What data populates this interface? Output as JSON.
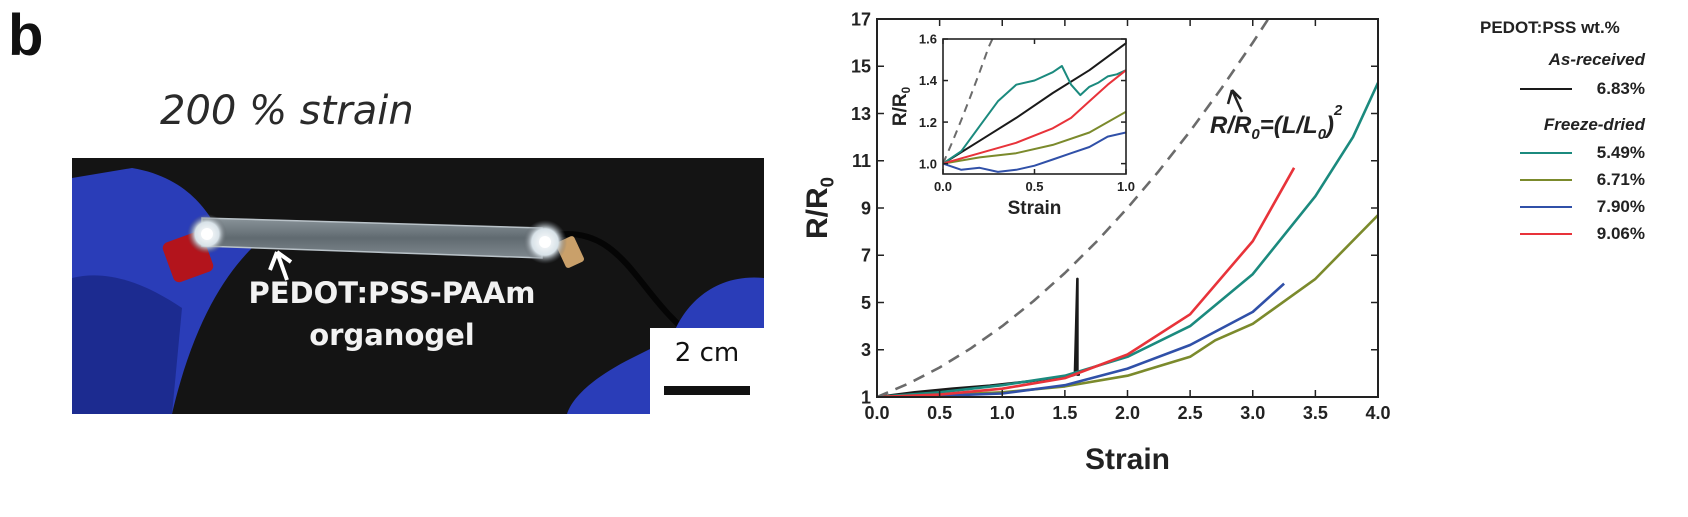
{
  "panel_letter": "b",
  "photo": {
    "caption": "200 % strain",
    "label_line1": "PEDOT:PSS-PAAm",
    "label_line2": "organogel",
    "scale_label": "2 cm"
  },
  "legend": {
    "title": "PEDOT:PSS wt.%",
    "groups": [
      "As-received",
      "Freeze-dried"
    ],
    "items": [
      {
        "label": "6.83%",
        "color": "#1a1a1a",
        "group": "As-received"
      },
      {
        "label": "5.49%",
        "color": "#1b8a7e",
        "group": "Freeze-dried"
      },
      {
        "label": "6.71%",
        "color": "#7b8a2c",
        "group": "Freeze-dried"
      },
      {
        "label": "7.90%",
        "color": "#3050a8",
        "group": "Freeze-dried"
      },
      {
        "label": "9.06%",
        "color": "#e8333a",
        "group": "Freeze-dried"
      }
    ]
  },
  "chart_data": [
    {
      "type": "line",
      "xlabel": "Strain",
      "ylabel": "R/R0",
      "xlim": [
        0,
        4.0
      ],
      "ylim": [
        1,
        17
      ],
      "xticks": [
        "0.0",
        "0.5",
        "1.0",
        "1.5",
        "2.0",
        "2.5",
        "3.0",
        "3.5",
        "4.0"
      ],
      "yticks": [
        "1",
        "3",
        "5",
        "7",
        "9",
        "11",
        "13",
        "15",
        "17"
      ],
      "annotation": "R/R0=(L/L0)2",
      "series": [
        {
          "name": "6.83%",
          "color": "#1a1a1a",
          "x": [
            0,
            0.3,
            0.6,
            0.9,
            1.2,
            1.4,
            1.55,
            1.58,
            1.6,
            1.6,
            1.61,
            1.61
          ],
          "y": [
            1,
            1.2,
            1.35,
            1.48,
            1.65,
            1.8,
            1.9,
            1.95,
            6.0,
            1.95,
            1.95,
            2.0
          ]
        },
        {
          "name": "5.49%",
          "color": "#1b8a7e",
          "x": [
            0,
            0.5,
            1.0,
            1.5,
            2.0,
            2.5,
            3.0,
            3.5,
            3.8,
            4.0
          ],
          "y": [
            1,
            1.2,
            1.5,
            1.9,
            2.7,
            4.0,
            6.2,
            9.5,
            12.0,
            14.3
          ]
        },
        {
          "name": "6.71%",
          "color": "#7b8a2c",
          "x": [
            0,
            0.5,
            1.0,
            1.5,
            2.0,
            2.5,
            2.7,
            3.0,
            3.5,
            4.0
          ],
          "y": [
            1,
            1.08,
            1.2,
            1.45,
            1.9,
            2.7,
            3.4,
            4.1,
            6.0,
            8.7
          ]
        },
        {
          "name": "7.90%",
          "color": "#3050a8",
          "x": [
            0,
            0.5,
            1.0,
            1.5,
            2.0,
            2.5,
            3.0,
            3.25
          ],
          "y": [
            1,
            1.05,
            1.15,
            1.5,
            2.2,
            3.2,
            4.6,
            5.8
          ]
        },
        {
          "name": "9.06%",
          "color": "#e8333a",
          "x": [
            0,
            0.5,
            1.0,
            1.5,
            2.0,
            2.5,
            3.0,
            3.33
          ],
          "y": [
            1,
            1.1,
            1.35,
            1.8,
            2.8,
            4.5,
            7.6,
            10.7
          ]
        },
        {
          "name": "R/R0=(L/L0)2",
          "color": "#6b6b6b",
          "dashed": true,
          "x": [
            0,
            0.25,
            0.5,
            0.75,
            1.0,
            1.25,
            1.5,
            1.75,
            2.0,
            2.25,
            2.5,
            2.75,
            3.0,
            3.12
          ],
          "y": [
            1,
            1.5625,
            2.25,
            3.0625,
            4,
            5.0625,
            6.25,
            7.5625,
            9,
            10.5625,
            12.25,
            14.0625,
            16,
            16.97
          ]
        }
      ]
    },
    {
      "type": "line",
      "xlabel": "Strain",
      "ylabel": "R/R0",
      "xlim": [
        0,
        1.0
      ],
      "ylim": [
        0.95,
        1.6
      ],
      "xticks": [
        "0.0",
        "0.5",
        "1.0"
      ],
      "yticks": [
        "1.0",
        "1.2",
        "1.4",
        "1.6"
      ],
      "series": [
        {
          "name": "6.83%",
          "color": "#1a1a1a",
          "x": [
            0,
            0.2,
            0.4,
            0.6,
            0.8,
            1.0
          ],
          "y": [
            1.0,
            1.11,
            1.22,
            1.34,
            1.45,
            1.58
          ]
        },
        {
          "name": "5.49%",
          "color": "#1b8a7e",
          "x": [
            0,
            0.1,
            0.2,
            0.3,
            0.4,
            0.5,
            0.6,
            0.65,
            0.7,
            0.75,
            0.8,
            0.85,
            0.9,
            0.95,
            1.0
          ],
          "y": [
            1.0,
            1.06,
            1.18,
            1.3,
            1.38,
            1.4,
            1.44,
            1.47,
            1.38,
            1.33,
            1.37,
            1.39,
            1.42,
            1.43,
            1.45
          ]
        },
        {
          "name": "6.71%",
          "color": "#7b8a2c",
          "x": [
            0,
            0.2,
            0.4,
            0.6,
            0.8,
            1.0
          ],
          "y": [
            1.0,
            1.03,
            1.05,
            1.09,
            1.15,
            1.25
          ]
        },
        {
          "name": "7.90%",
          "color": "#3050a8",
          "x": [
            0,
            0.1,
            0.2,
            0.3,
            0.4,
            0.5,
            0.6,
            0.7,
            0.8,
            0.9,
            1.0
          ],
          "y": [
            1.0,
            0.97,
            0.98,
            0.96,
            0.97,
            0.99,
            1.02,
            1.05,
            1.08,
            1.13,
            1.15
          ]
        },
        {
          "name": "9.06%",
          "color": "#e8333a",
          "x": [
            0,
            0.2,
            0.4,
            0.6,
            0.7,
            0.8,
            0.9,
            1.0
          ],
          "y": [
            1.0,
            1.05,
            1.1,
            1.17,
            1.22,
            1.3,
            1.38,
            1.45
          ]
        },
        {
          "name": "R/R0=(L/L0)2",
          "color": "#6b6b6b",
          "dashed": true,
          "x": [
            0,
            0.05,
            0.1,
            0.15,
            0.2,
            0.25,
            0.27
          ],
          "y": [
            1.0,
            1.1025,
            1.21,
            1.3225,
            1.44,
            1.5625,
            1.6
          ]
        }
      ]
    }
  ]
}
